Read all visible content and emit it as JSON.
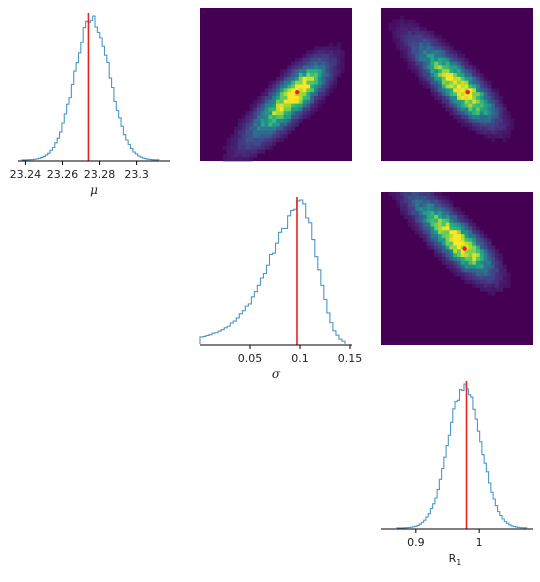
{
  "chart_data": [
    {
      "type": "histogram",
      "panel": "mu-marginal",
      "xlabel": "μ",
      "xlim": [
        23.236,
        23.318
      ],
      "xticks": [
        23.24,
        23.26,
        23.28,
        23.3
      ],
      "xtick_labels": [
        "23.24",
        "23.26",
        "23.28",
        "23.3"
      ],
      "truth": 23.274,
      "center": 23.276,
      "spread": 0.0095,
      "range": [
        23.238,
        23.312
      ],
      "color": "#4d96c8",
      "truth_color": "#e8231f"
    },
    {
      "type": "histogram",
      "panel": "sigma-marginal",
      "xlabel": "σ",
      "xlim": [
        0.0,
        0.152
      ],
      "xticks": [
        0.05,
        0.1,
        0.15
      ],
      "xtick_labels": [
        "0.05",
        "0.1",
        "0.15"
      ],
      "truth": 0.097,
      "peak": 0.105,
      "range": [
        0.0,
        0.145
      ],
      "color": "#4d96c8",
      "truth_color": "#e8231f"
    },
    {
      "type": "histogram",
      "panel": "R1-marginal",
      "xlabel": "R",
      "xlabel_sub": "1",
      "xlim": [
        0.845,
        1.085
      ],
      "xticks": [
        0.9,
        1.0
      ],
      "xtick_labels": [
        "0.9",
        "1"
      ],
      "truth": 0.98,
      "center": 0.977,
      "spread": 0.026,
      "range": [
        0.87,
        1.075
      ],
      "color": "#4d96c8",
      "truth_color": "#e8231f"
    },
    {
      "type": "heatmap",
      "panel": "mu-sigma",
      "x": "σ",
      "y": "μ",
      "peak_at": [
        0.64,
        0.55
      ],
      "shape": "tilted-up-right",
      "truth_marker": [
        0.64,
        0.55
      ]
    },
    {
      "type": "heatmap",
      "panel": "mu-R1",
      "x": "R1",
      "y": "μ",
      "peak_at": [
        0.55,
        0.55
      ],
      "shape": "tilted-down-right",
      "truth_marker": [
        0.57,
        0.55
      ]
    },
    {
      "type": "heatmap",
      "panel": "sigma-R1",
      "x": "R1",
      "y": "σ",
      "peak_at": [
        0.53,
        0.35
      ],
      "shape": "tilted-down-right",
      "truth_marker": [
        0.55,
        0.37
      ]
    }
  ]
}
